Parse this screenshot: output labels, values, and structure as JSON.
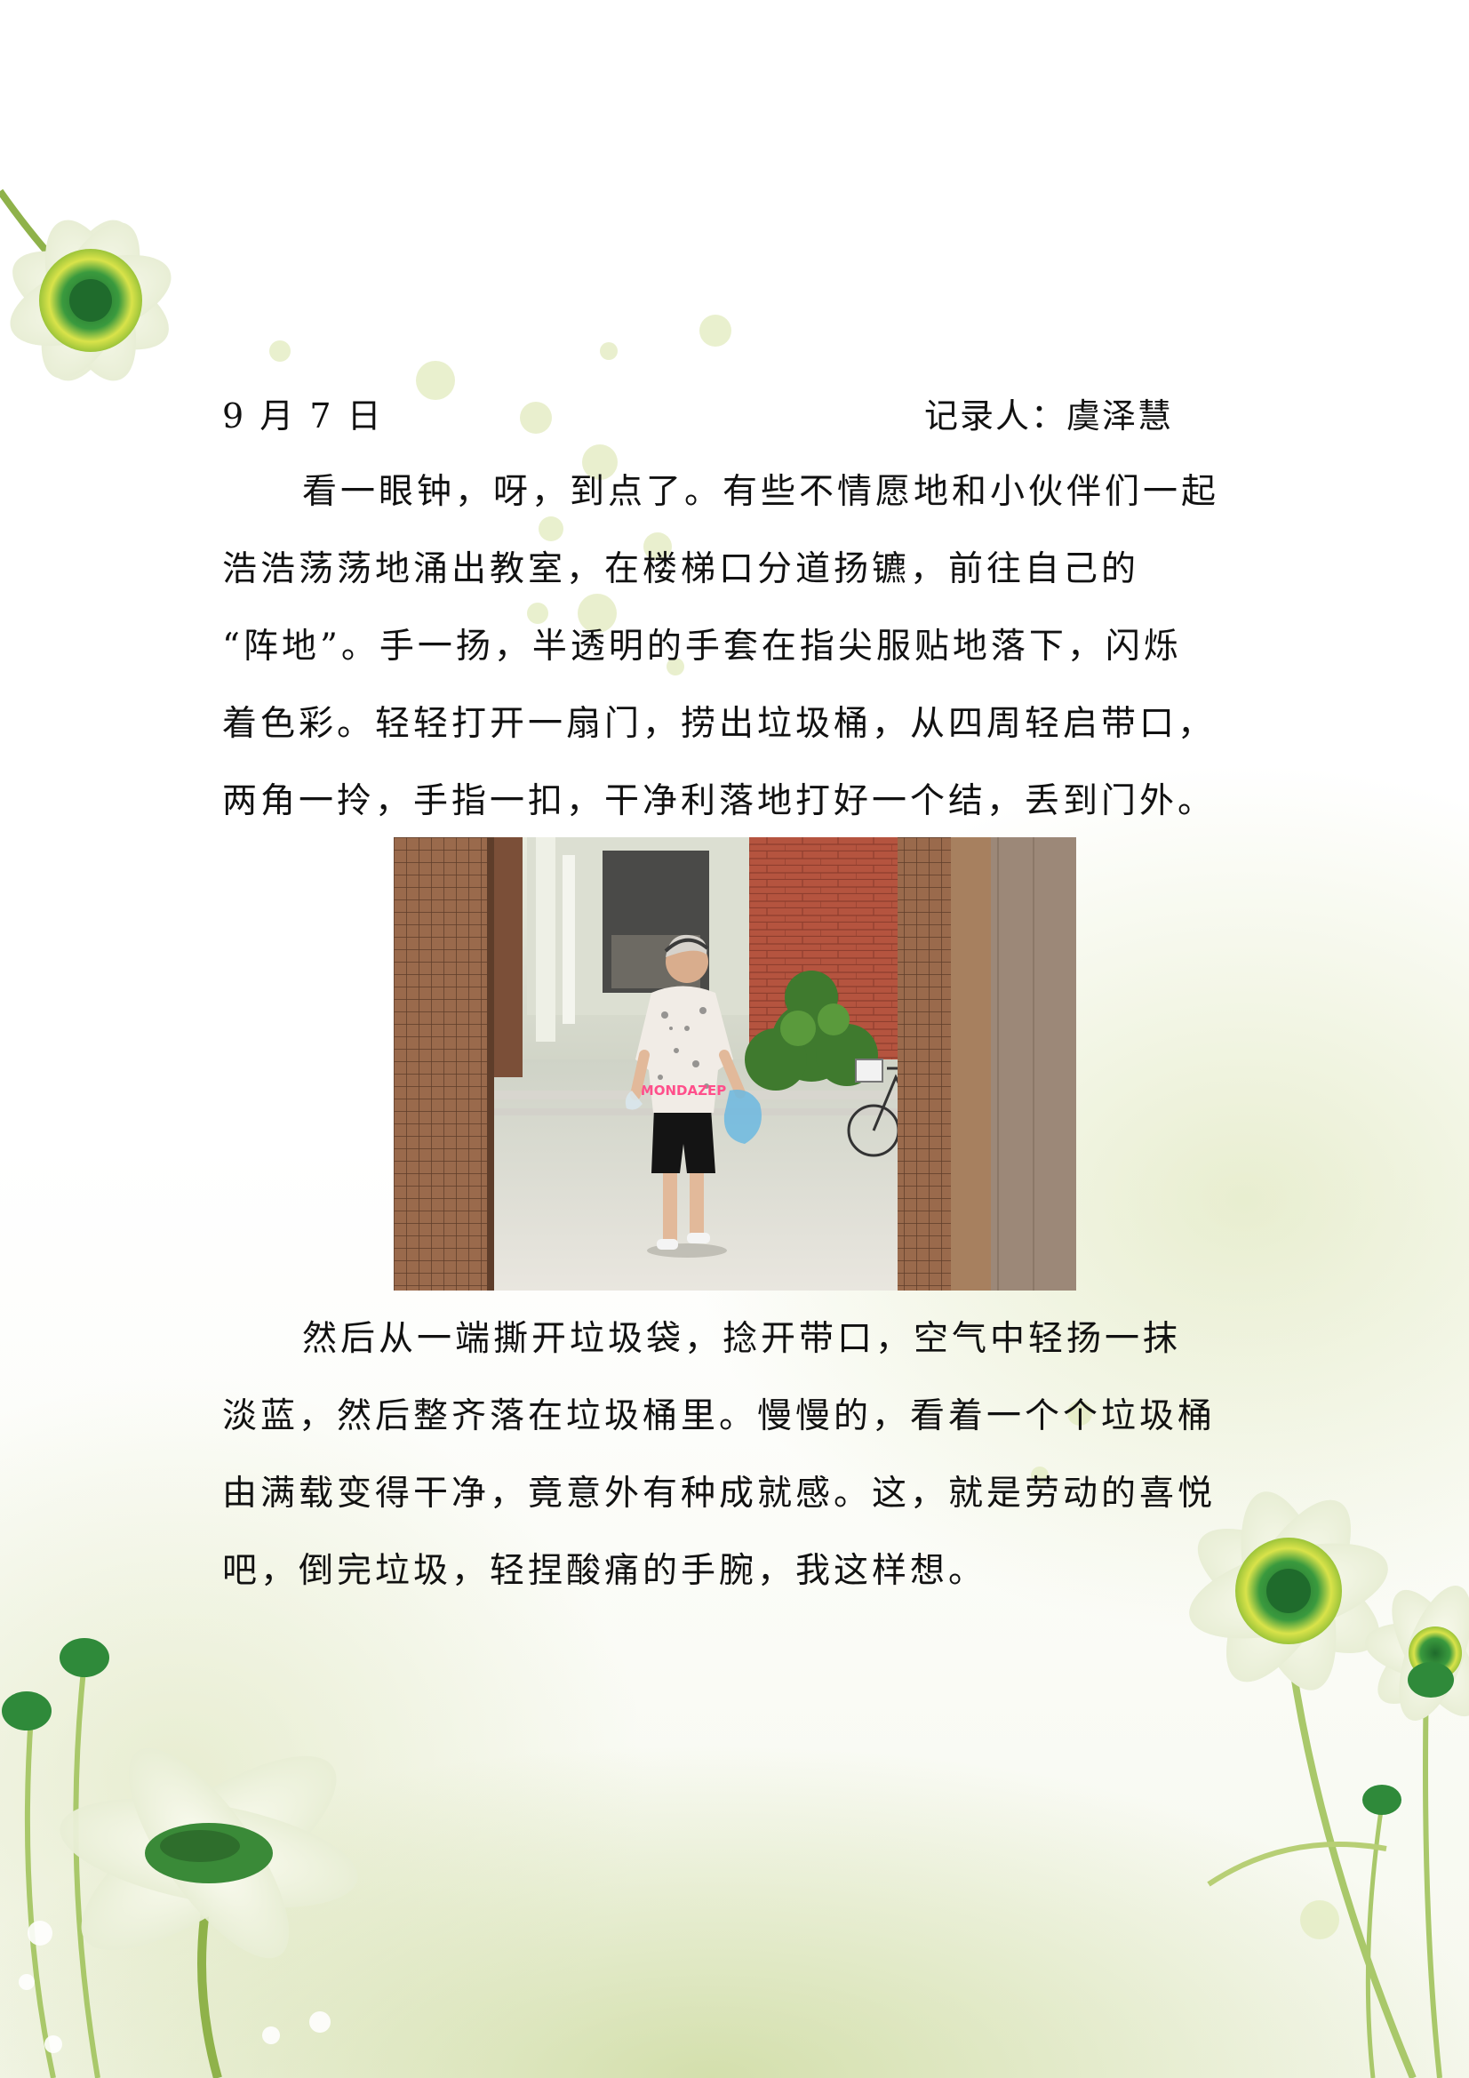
{
  "header": {
    "date": "9 月 7 日",
    "recorder": "记录人：虞泽慧"
  },
  "paragraph1": {
    "lines": [
      "看一眼钟，呀，到点了。有些不情愿地和小伙伴们一起",
      "浩浩荡荡地涌出教室，在楼梯口分道扬镳，前往自己的",
      "“阵地”。手一扬，半透明的手套在指尖服贴地落下，闪烁",
      "着色彩。轻轻打开一扇门，捞出垃圾桶，从四周轻启带口，",
      "两角一拎，手指一扣，干净利落地打好一个结，丢到门外。"
    ]
  },
  "photo": {
    "shirt_text": "MONDAZEP"
  },
  "paragraph2": {
    "lines": [
      "然后从一端撕开垃圾袋，捻开带口，空气中轻扬一抹",
      "淡蓝，然后整齐落在垃圾桶里。慢慢的，看着一个个垃圾桶",
      "由满载变得干净，竟意外有种成就感。这，就是劳动的喜悦",
      "吧，倒完垃圾，轻捏酸痛的手腕，我这样想。"
    ]
  },
  "colors": {
    "brick": "#b5543f",
    "tile_pillar": "#9a6a4c",
    "bag_blue": "#6cb8e0",
    "petal": "#ffffff",
    "flower_center": "#2f8a3a",
    "stem": "#8fb24a"
  }
}
